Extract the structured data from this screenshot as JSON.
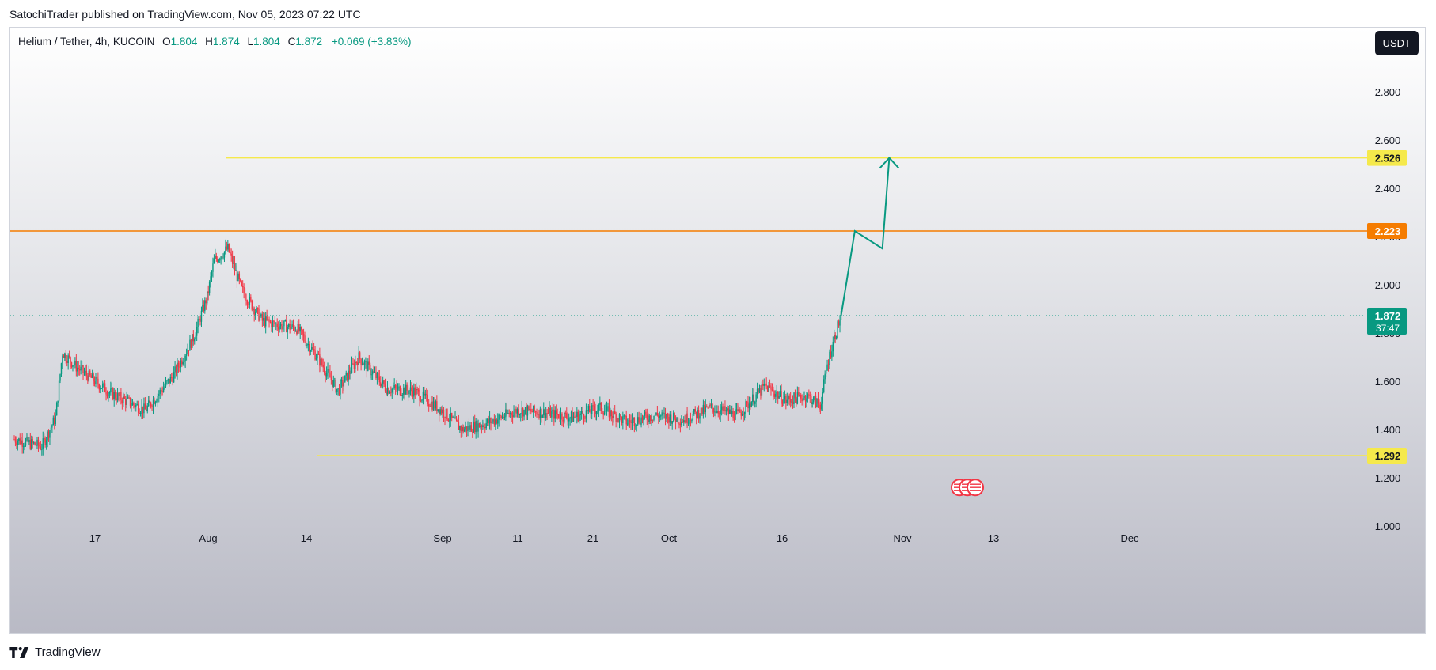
{
  "publisher": "SatochiTrader published on TradingView.com, Nov 05, 2023 07:22 UTC",
  "footer": {
    "brand": "TradingView"
  },
  "legend": {
    "symbol": "Helium / Tether, 4h, KUCOIN",
    "open_label": "O",
    "open": "1.804",
    "high_label": "H",
    "high": "1.874",
    "low_label": "L",
    "low": "1.804",
    "close_label": "C",
    "close": "1.872",
    "change": "+0.069 (+3.83%)"
  },
  "currency": "USDT",
  "colors": {
    "up": "#089981",
    "down": "#f23645",
    "resistance_orange": "#f57c00",
    "level_yellow": "#f5e94b",
    "projection": "#089981"
  },
  "chart_data": {
    "type": "candlestick",
    "timeframe": "4h",
    "ylim": [
      1.0,
      2.9
    ],
    "y_ticks": [
      "2.800",
      "2.600",
      "2.400",
      "2.200",
      "2.000",
      "1.800",
      "1.600",
      "1.400",
      "1.200",
      "1.000"
    ],
    "x_ticks": [
      "17",
      "Aug",
      "14",
      "Sep",
      "11",
      "21",
      "Oct",
      "16",
      "Nov",
      "13",
      "Dec"
    ],
    "horizontal_levels": [
      {
        "value": "2.526",
        "color": "#f5e94b"
      },
      {
        "value": "2.223",
        "color": "#f57c00"
      },
      {
        "value": "1.292",
        "color": "#f5e94b"
      }
    ],
    "last_price": {
      "value": "1.872",
      "countdown": "37:47"
    },
    "price_path": [
      {
        "date": "Jul 8",
        "close": 1.36
      },
      {
        "date": "Jul 12",
        "close": 1.33
      },
      {
        "date": "Jul 14",
        "close": 1.45
      },
      {
        "date": "Jul 15",
        "close": 1.72
      },
      {
        "date": "Jul 17",
        "close": 1.66
      },
      {
        "date": "Jul 22",
        "close": 1.55
      },
      {
        "date": "Jul 27",
        "close": 1.48
      },
      {
        "date": "Jul 31",
        "close": 1.62
      },
      {
        "date": "Aug 3",
        "close": 1.78
      },
      {
        "date": "Aug 5",
        "close": 1.95
      },
      {
        "date": "Aug 6",
        "close": 2.1
      },
      {
        "date": "Aug 8",
        "close": 2.15
      },
      {
        "date": "Aug 10",
        "close": 1.98
      },
      {
        "date": "Aug 13",
        "close": 1.85
      },
      {
        "date": "Aug 16",
        "close": 1.83
      },
      {
        "date": "Aug 18",
        "close": 1.82
      },
      {
        "date": "Aug 21",
        "close": 1.7
      },
      {
        "date": "Aug 24",
        "close": 1.56
      },
      {
        "date": "Aug 27",
        "close": 1.7
      },
      {
        "date": "Aug 31",
        "close": 1.57
      },
      {
        "date": "Sep 4",
        "close": 1.56
      },
      {
        "date": "Sep 8",
        "close": 1.48
      },
      {
        "date": "Sep 11",
        "close": 1.4
      },
      {
        "date": "Sep 15",
        "close": 1.43
      },
      {
        "date": "Sep 19",
        "close": 1.48
      },
      {
        "date": "Sep 23",
        "close": 1.47
      },
      {
        "date": "Sep 27",
        "close": 1.45
      },
      {
        "date": "Oct 1",
        "close": 1.49
      },
      {
        "date": "Oct 5",
        "close": 1.43
      },
      {
        "date": "Oct 9",
        "close": 1.46
      },
      {
        "date": "Oct 13",
        "close": 1.44
      },
      {
        "date": "Oct 17",
        "close": 1.49
      },
      {
        "date": "Oct 21",
        "close": 1.46
      },
      {
        "date": "Oct 25",
        "close": 1.58
      },
      {
        "date": "Oct 28",
        "close": 1.52
      },
      {
        "date": "Oct 31",
        "close": 1.54
      },
      {
        "date": "Nov 2",
        "close": 1.5
      },
      {
        "date": "Nov 3",
        "close": 1.67
      },
      {
        "date": "Nov 4",
        "close": 1.78
      },
      {
        "date": "Nov 5",
        "close": 1.872
      }
    ],
    "projection_path": [
      {
        "date": "Nov 5",
        "value": 1.872
      },
      {
        "date": "Nov 7",
        "value": 2.223
      },
      {
        "date": "Nov 11",
        "value": 2.15
      },
      {
        "date": "Nov 12",
        "value": 2.526
      }
    ]
  }
}
